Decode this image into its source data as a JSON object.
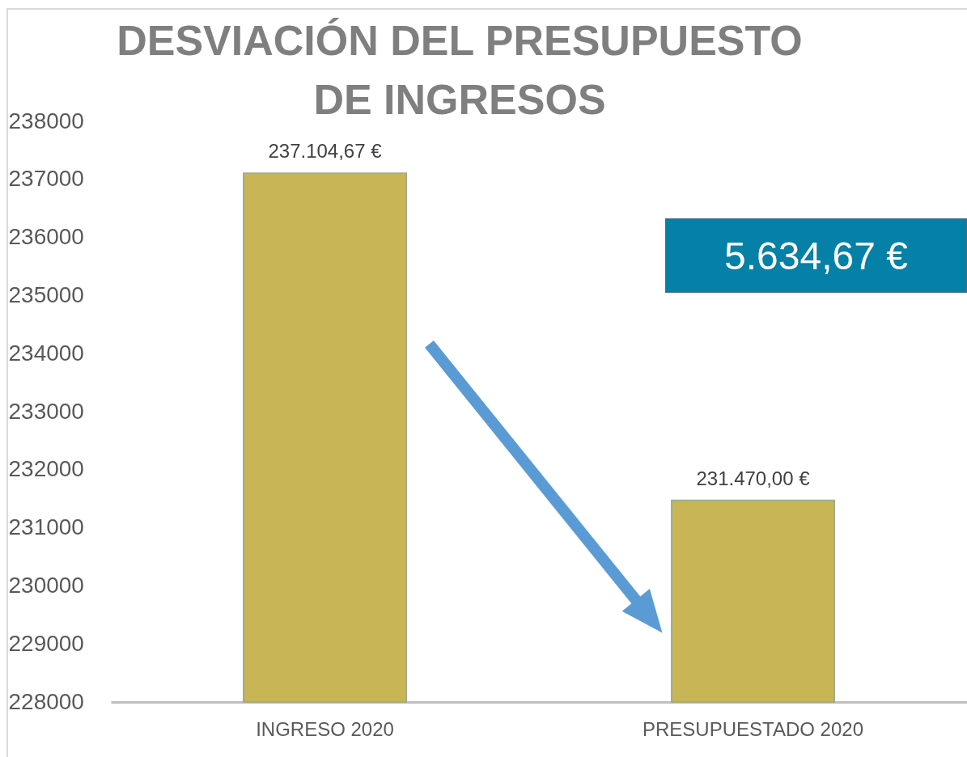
{
  "chart_data": {
    "type": "bar",
    "title": "DESVIACIÓN DEL PRESUPUESTO DE INGRESOS",
    "categories": [
      "INGRESO 2020",
      "PRESUPUESTADO 2020"
    ],
    "values": [
      237104.67,
      231470.0
    ],
    "value_labels": [
      "237.104,67 €",
      "231.470,00 €"
    ],
    "color": "#c8b656",
    "ylim": [
      228000,
      238000
    ],
    "yticks": [
      228000,
      229000,
      230000,
      231000,
      232000,
      233000,
      234000,
      235000,
      236000,
      237000,
      238000
    ],
    "annotations": [
      "5.634,67 €"
    ]
  }
}
